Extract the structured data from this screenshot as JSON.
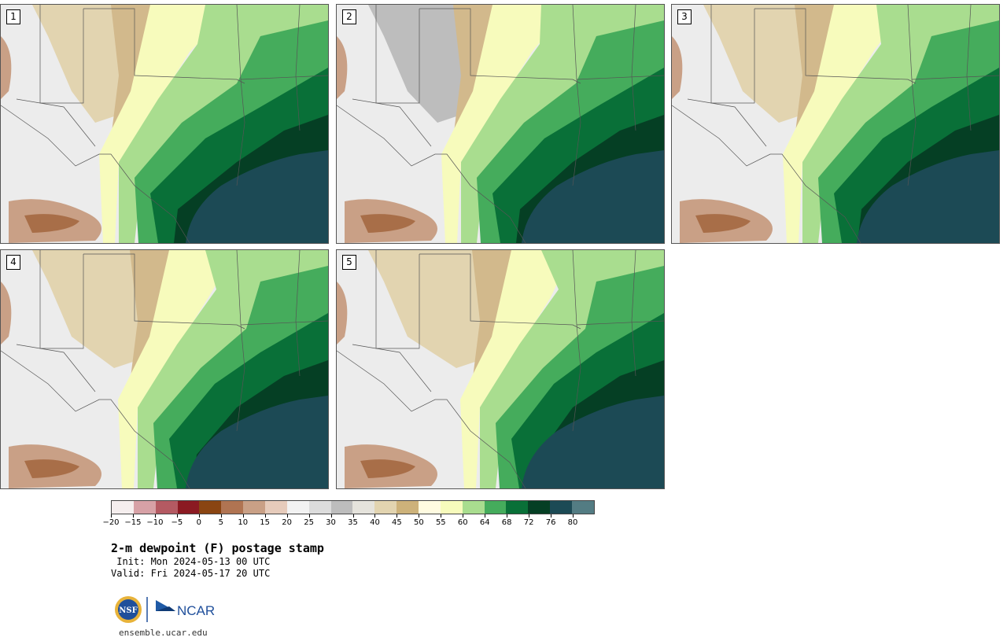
{
  "panels": [
    {
      "label": "1",
      "variant": 0
    },
    {
      "label": "2",
      "variant": 1
    },
    {
      "label": "3",
      "variant": 2
    },
    {
      "label": "4",
      "variant": 3
    },
    {
      "label": "5",
      "variant": 4
    }
  ],
  "colorbar": {
    "colors": [
      "#f5eeee",
      "#d7a1a6",
      "#b45a62",
      "#8b1a22",
      "#8a4512",
      "#b07452",
      "#c9a086",
      "#e6cbbb",
      "#f2f2f2",
      "#dcdcdc",
      "#bdbdbd",
      "#e5e3dc",
      "#e2d4b0",
      "#cdb27a",
      "#fffbe1",
      "#f7fbbc",
      "#a9dd8f",
      "#45ac5c",
      "#097038",
      "#053f24",
      "#1c4a55",
      "#537c83"
    ],
    "tick_labels": [
      "−20",
      "−15",
      "−10",
      "−5",
      "0",
      "5",
      "10",
      "15",
      "20",
      "25",
      "30",
      "35",
      "40",
      "45",
      "50",
      "55",
      "60",
      "64",
      "68",
      "72",
      "76",
      "80"
    ]
  },
  "title": "2-m dewpoint (F) postage stamp",
  "init_line": " Init: Mon 2024-05-13 00 UTC",
  "valid_line": "Valid: Fri 2024-05-17 20 UTC",
  "logo": {
    "left_text": "NSF",
    "right_text": "NCAR"
  },
  "website": "ensemble.ucar.edu"
}
